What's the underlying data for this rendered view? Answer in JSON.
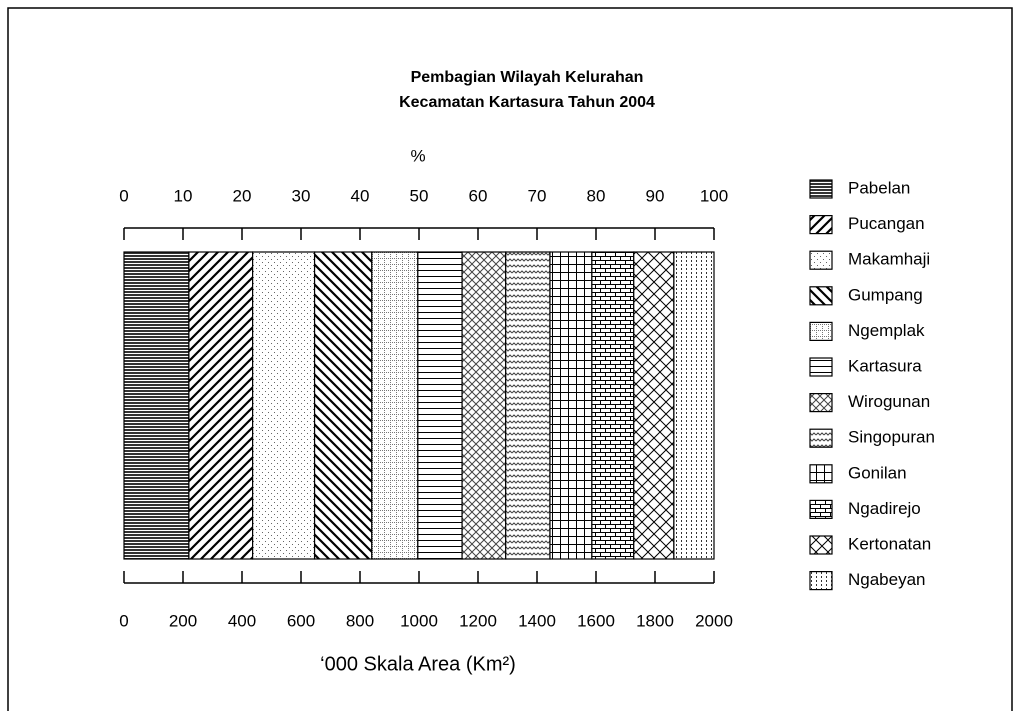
{
  "chart_data": {
    "type": "stacked-bar-horizontal",
    "title": [
      "Pembagian Wilayah Kelurahan",
      "Kecamatan Kartasura Tahun 2004"
    ],
    "xlabel": "%",
    "x2label": "‘000 Skala Area (Km²)",
    "xlim": [
      0,
      100
    ],
    "xticks": [
      0,
      10,
      20,
      30,
      40,
      50,
      60,
      70,
      80,
      90,
      100
    ],
    "x2lim": [
      0,
      2000
    ],
    "x2ticks": [
      0,
      200,
      400,
      600,
      800,
      1000,
      1200,
      1400,
      1600,
      1800,
      2000
    ],
    "legend": "right",
    "series": [
      {
        "name": "Pabelan",
        "values": [
          11.0
        ]
      },
      {
        "name": "Pucangan",
        "values": [
          10.8
        ]
      },
      {
        "name": "Makamhaji",
        "values": [
          10.5
        ]
      },
      {
        "name": "Gumpang",
        "values": [
          9.7
        ]
      },
      {
        "name": "Ngemplak",
        "values": [
          7.8
        ]
      },
      {
        "name": "Kartasura",
        "values": [
          7.5
        ]
      },
      {
        "name": "Wirogunan",
        "values": [
          7.4
        ]
      },
      {
        "name": "Singopuran",
        "values": [
          7.5
        ]
      },
      {
        "name": "Gonilan",
        "values": [
          7.1
        ]
      },
      {
        "name": "Ngadirejo",
        "values": [
          7.1
        ]
      },
      {
        "name": "Kertonatan",
        "values": [
          6.8
        ]
      },
      {
        "name": "Ngabeyan",
        "values": [
          6.8
        ]
      }
    ]
  }
}
